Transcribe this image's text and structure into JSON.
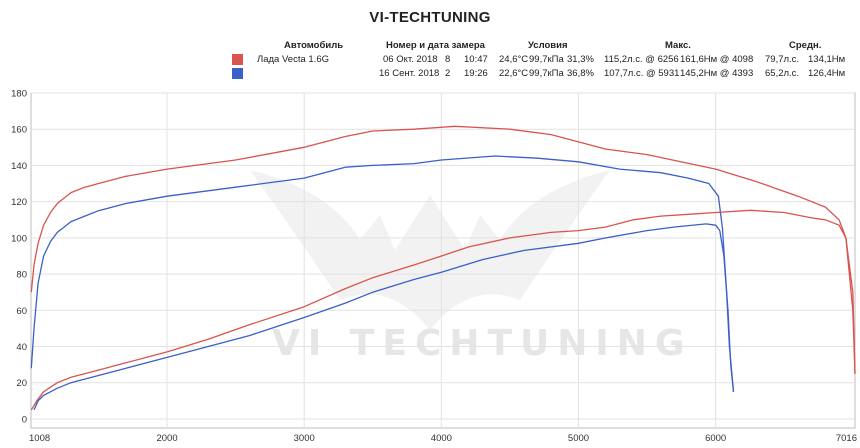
{
  "chart_data": {
    "type": "line",
    "title": "VI-TECHTUNING",
    "watermark": "VI TECHTUNING",
    "xlim": [
      1008,
      7016
    ],
    "ylim": [
      -5,
      180
    ],
    "x_ticks": [
      1008,
      2000,
      3000,
      4000,
      5000,
      6000,
      7016
    ],
    "y_ticks": [
      0,
      20,
      40,
      60,
      80,
      100,
      120,
      140,
      160,
      180
    ],
    "grid": true,
    "legend": {
      "headers": {
        "car": "Автомобиль",
        "date": "Номер и дата замера",
        "conditions": "Условия",
        "max": "Макс.",
        "avg": "Средн."
      },
      "rows": [
        {
          "car": "Лада Vecta 1.6G",
          "date": "06 Окт. 2018",
          "num": "8",
          "time": "10:47",
          "temp": "24,6°C",
          "pressure": "99,7кПа",
          "humidity": "31,3%",
          "max_power": "115,2л.с. @ 6256",
          "max_torque": "161,6Нм @ 4098",
          "avg_power": "79,7л.с.",
          "avg_torque": "134,1Нм"
        },
        {
          "car": "",
          "date": "16 Сент. 2018",
          "num": "2",
          "time": "19:26",
          "temp": "22,6°C",
          "pressure": "99,7кПа",
          "humidity": "36,8%",
          "max_power": "107,7л.с. @ 5931",
          "max_torque": "145,2Нм @ 4393",
          "avg_power": "65,2л.с.",
          "avg_torque": "126,4Нм"
        }
      ]
    },
    "series": [
      {
        "color": "#d9534f",
        "kind": "torque",
        "x": [
          1010,
          1030,
          1060,
          1100,
          1150,
          1200,
          1250,
          1300,
          1400,
          1500,
          1700,
          2000,
          2500,
          3000,
          3300,
          3500,
          3800,
          4100,
          4500,
          4800,
          5000,
          5200,
          5500,
          6000,
          6300,
          6600,
          6800,
          6900,
          6950,
          7000,
          7016
        ],
        "values": [
          70,
          85,
          97,
          107,
          114,
          119,
          122,
          125,
          128,
          130,
          134,
          138,
          143,
          150,
          156,
          159,
          160,
          161.6,
          160,
          157,
          153,
          149,
          146,
          138,
          131,
          123,
          117,
          110,
          100,
          60,
          25
        ]
      },
      {
        "color": "#3b5fc9",
        "kind": "torque",
        "x": [
          1010,
          1030,
          1060,
          1100,
          1150,
          1200,
          1250,
          1300,
          1400,
          1500,
          1700,
          2000,
          2500,
          3000,
          3300,
          3500,
          3800,
          4000,
          4393,
          4700,
          5000,
          5300,
          5600,
          5800,
          5950,
          6020,
          6050,
          6080,
          6100,
          6130
        ],
        "values": [
          28,
          50,
          75,
          90,
          98,
          103,
          106,
          109,
          112,
          115,
          119,
          123,
          128,
          133,
          139,
          140,
          141,
          143,
          145.2,
          144,
          142,
          138,
          136,
          133,
          130,
          123,
          105,
          70,
          40,
          15
        ]
      },
      {
        "color": "#d9534f",
        "kind": "power",
        "x": [
          1010,
          1050,
          1100,
          1200,
          1300,
          1500,
          1700,
          2000,
          2300,
          2600,
          3000,
          3300,
          3500,
          3800,
          4000,
          4200,
          4500,
          4800,
          5000,
          5200,
          5400,
          5600,
          5800,
          6000,
          6256,
          6500,
          6700,
          6800,
          6900,
          6950,
          7000,
          7016
        ],
        "values": [
          5,
          10,
          15,
          20,
          23,
          27,
          31,
          37,
          44,
          52,
          62,
          72,
          78,
          85,
          90,
          95,
          100,
          103,
          104,
          106,
          110,
          112,
          113,
          114,
          115.2,
          114,
          111,
          110,
          107,
          100,
          70,
          25
        ]
      },
      {
        "color": "#3b5fc9",
        "kind": "power",
        "x": [
          1030,
          1060,
          1100,
          1200,
          1300,
          1500,
          1700,
          2000,
          2300,
          2600,
          3000,
          3300,
          3500,
          3800,
          4000,
          4300,
          4600,
          5000,
          5200,
          5500,
          5700,
          5931,
          6000,
          6030,
          6060,
          6090,
          6110,
          6130
        ],
        "values": [
          5,
          10,
          13,
          17,
          20,
          24,
          28,
          34,
          40,
          46,
          56,
          64,
          70,
          77,
          81,
          88,
          93,
          97,
          100,
          104,
          106,
          107.7,
          107,
          104,
          90,
          60,
          30,
          15
        ]
      }
    ]
  }
}
